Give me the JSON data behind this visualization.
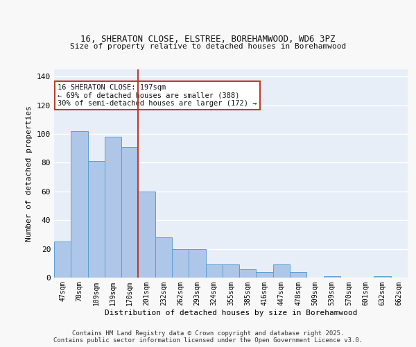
{
  "title1": "16, SHERATON CLOSE, ELSTREE, BOREHAMWOOD, WD6 3PZ",
  "title2": "Size of property relative to detached houses in Borehamwood",
  "xlabel": "Distribution of detached houses by size in Borehamwood",
  "ylabel": "Number of detached properties",
  "categories": [
    "47sqm",
    "78sqm",
    "109sqm",
    "139sqm",
    "170sqm",
    "201sqm",
    "232sqm",
    "262sqm",
    "293sqm",
    "324sqm",
    "355sqm",
    "385sqm",
    "416sqm",
    "447sqm",
    "478sqm",
    "509sqm",
    "539sqm",
    "570sqm",
    "601sqm",
    "632sqm",
    "662sqm"
  ],
  "values": [
    25,
    102,
    81,
    98,
    91,
    60,
    28,
    20,
    20,
    9,
    9,
    6,
    4,
    9,
    4,
    0,
    1,
    0,
    0,
    1,
    0
  ],
  "bar_color": "#aec6e8",
  "bar_edge_color": "#5a9fd4",
  "background_color": "#e8eef8",
  "grid_color": "#ffffff",
  "vline_x": 4.5,
  "vline_color": "#c0392b",
  "annotation_text": "16 SHERATON CLOSE: 197sqm\n← 69% of detached houses are smaller (388)\n30% of semi-detached houses are larger (172) →",
  "annotation_box_color": "#ffffff",
  "annotation_edge_color": "#c0392b",
  "footer": "Contains HM Land Registry data © Crown copyright and database right 2025.\nContains public sector information licensed under the Open Government Licence v3.0.",
  "ylim": [
    0,
    145
  ],
  "yticks": [
    0,
    20,
    40,
    60,
    80,
    100,
    120,
    140
  ]
}
